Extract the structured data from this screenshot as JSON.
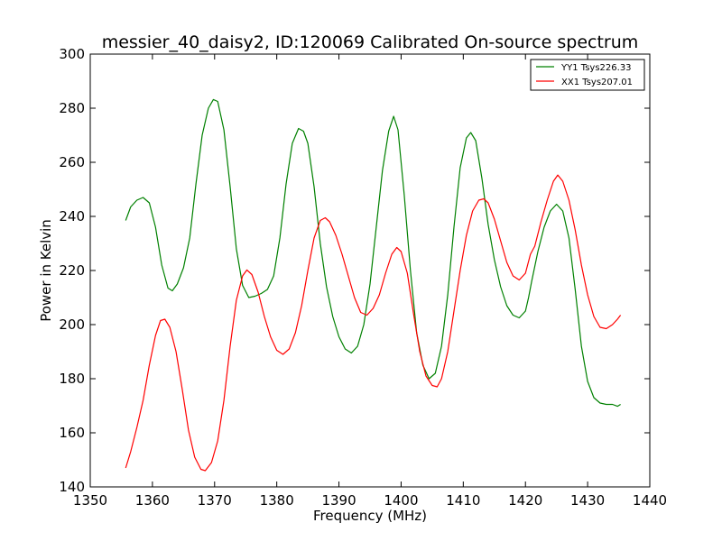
{
  "chart_data": {
    "type": "line",
    "title": "messier_40_daisy2, ID:120069 Calibrated On-source spectrum",
    "xlabel": "Frequency (MHz)",
    "ylabel": "Power in Kelvin",
    "xlim": [
      1350,
      1440
    ],
    "ylim": [
      140,
      300
    ],
    "xticks": [
      1350,
      1360,
      1370,
      1380,
      1390,
      1400,
      1410,
      1420,
      1430,
      1440
    ],
    "yticks": [
      140,
      160,
      180,
      200,
      220,
      240,
      260,
      280,
      300
    ],
    "grid": false,
    "legend_position": "top-right",
    "series": [
      {
        "name": "YY1 Tsys226.33",
        "color": "#008000",
        "points": [
          [
            1355.7,
            238.5
          ],
          [
            1356.5,
            243.5
          ],
          [
            1357.5,
            246.0
          ],
          [
            1358.5,
            247.0
          ],
          [
            1359.5,
            245.0
          ],
          [
            1360.5,
            236.0
          ],
          [
            1361.5,
            222.0
          ],
          [
            1362.5,
            213.5
          ],
          [
            1363.2,
            212.5
          ],
          [
            1364.0,
            215.0
          ],
          [
            1365.0,
            221.0
          ],
          [
            1366.0,
            232.0
          ],
          [
            1367.0,
            252.0
          ],
          [
            1368.0,
            270.0
          ],
          [
            1369.0,
            280.0
          ],
          [
            1369.8,
            283.2
          ],
          [
            1370.5,
            282.5
          ],
          [
            1371.5,
            272.0
          ],
          [
            1372.5,
            251.0
          ],
          [
            1373.5,
            228.0
          ],
          [
            1374.5,
            214.5
          ],
          [
            1375.5,
            210.0
          ],
          [
            1376.5,
            210.5
          ],
          [
            1377.5,
            211.5
          ],
          [
            1378.5,
            213.0
          ],
          [
            1379.5,
            218.0
          ],
          [
            1380.5,
            232.0
          ],
          [
            1381.5,
            252.0
          ],
          [
            1382.5,
            267.0
          ],
          [
            1383.5,
            272.5
          ],
          [
            1384.3,
            271.5
          ],
          [
            1385.0,
            267.0
          ],
          [
            1386.0,
            251.0
          ],
          [
            1387.0,
            230.0
          ],
          [
            1388.0,
            214.0
          ],
          [
            1389.0,
            203.0
          ],
          [
            1390.0,
            195.5
          ],
          [
            1391.0,
            191.0
          ],
          [
            1392.0,
            189.5
          ],
          [
            1393.0,
            192.0
          ],
          [
            1394.0,
            200.0
          ],
          [
            1395.0,
            215.0
          ],
          [
            1396.0,
            236.0
          ],
          [
            1397.0,
            257.0
          ],
          [
            1398.0,
            271.5
          ],
          [
            1398.8,
            277.0
          ],
          [
            1399.5,
            272.0
          ],
          [
            1400.5,
            248.0
          ],
          [
            1401.5,
            220.0
          ],
          [
            1402.5,
            197.0
          ],
          [
            1403.5,
            185.0
          ],
          [
            1404.5,
            180.0
          ],
          [
            1405.5,
            182.0
          ],
          [
            1406.5,
            192.0
          ],
          [
            1407.5,
            211.0
          ],
          [
            1408.5,
            236.0
          ],
          [
            1409.5,
            258.0
          ],
          [
            1410.5,
            269.0
          ],
          [
            1411.2,
            271.0
          ],
          [
            1412.0,
            268.0
          ],
          [
            1413.0,
            254.0
          ],
          [
            1414.0,
            237.0
          ],
          [
            1415.0,
            224.0
          ],
          [
            1416.0,
            214.0
          ],
          [
            1417.0,
            207.0
          ],
          [
            1418.0,
            203.5
          ],
          [
            1419.0,
            202.5
          ],
          [
            1420.0,
            205.0
          ],
          [
            1420.5,
            210.0
          ],
          [
            1421.0,
            216.0
          ],
          [
            1422.0,
            227.0
          ],
          [
            1423.0,
            236.0
          ],
          [
            1424.0,
            242.0
          ],
          [
            1425.0,
            244.5
          ],
          [
            1426.0,
            242.0
          ],
          [
            1427.0,
            232.0
          ],
          [
            1428.0,
            213.0
          ],
          [
            1429.0,
            192.0
          ],
          [
            1430.0,
            179.0
          ],
          [
            1431.0,
            173.0
          ],
          [
            1432.0,
            171.0
          ],
          [
            1433.0,
            170.5
          ],
          [
            1434.0,
            170.5
          ],
          [
            1434.8,
            169.8
          ],
          [
            1435.3,
            170.5
          ]
        ]
      },
      {
        "name": "XX1 Tsys207.01",
        "color": "#ff0000",
        "points": [
          [
            1355.7,
            147.0
          ],
          [
            1356.5,
            153.0
          ],
          [
            1357.5,
            162.0
          ],
          [
            1358.5,
            172.0
          ],
          [
            1359.5,
            185.0
          ],
          [
            1360.5,
            196.0
          ],
          [
            1361.3,
            201.5
          ],
          [
            1362.0,
            202.0
          ],
          [
            1362.8,
            199.0
          ],
          [
            1363.8,
            190.0
          ],
          [
            1364.8,
            176.0
          ],
          [
            1365.8,
            161.0
          ],
          [
            1366.8,
            151.0
          ],
          [
            1367.8,
            146.5
          ],
          [
            1368.5,
            146.0
          ],
          [
            1369.5,
            149.0
          ],
          [
            1370.5,
            157.0
          ],
          [
            1371.5,
            172.0
          ],
          [
            1372.5,
            192.0
          ],
          [
            1373.5,
            209.0
          ],
          [
            1374.5,
            218.0
          ],
          [
            1375.2,
            220.2
          ],
          [
            1376.0,
            218.5
          ],
          [
            1377.0,
            212.0
          ],
          [
            1378.0,
            203.0
          ],
          [
            1379.0,
            195.5
          ],
          [
            1380.0,
            190.5
          ],
          [
            1381.0,
            189.0
          ],
          [
            1382.0,
            191.0
          ],
          [
            1383.0,
            197.0
          ],
          [
            1384.0,
            207.0
          ],
          [
            1385.0,
            220.0
          ],
          [
            1386.0,
            232.0
          ],
          [
            1387.0,
            238.5
          ],
          [
            1387.8,
            239.5
          ],
          [
            1388.5,
            238.0
          ],
          [
            1389.5,
            233.0
          ],
          [
            1390.5,
            226.0
          ],
          [
            1391.5,
            218.0
          ],
          [
            1392.5,
            210.0
          ],
          [
            1393.5,
            204.5
          ],
          [
            1394.5,
            203.5
          ],
          [
            1395.5,
            206.0
          ],
          [
            1396.5,
            211.0
          ],
          [
            1397.5,
            219.0
          ],
          [
            1398.5,
            226.0
          ],
          [
            1399.3,
            228.5
          ],
          [
            1400.0,
            227.0
          ],
          [
            1401.0,
            219.0
          ],
          [
            1402.0,
            204.0
          ],
          [
            1403.0,
            190.0
          ],
          [
            1404.0,
            181.0
          ],
          [
            1405.0,
            177.5
          ],
          [
            1405.8,
            177.0
          ],
          [
            1406.5,
            180.0
          ],
          [
            1407.5,
            190.0
          ],
          [
            1408.5,
            205.0
          ],
          [
            1409.5,
            220.0
          ],
          [
            1410.5,
            233.0
          ],
          [
            1411.5,
            242.0
          ],
          [
            1412.5,
            246.0
          ],
          [
            1413.3,
            246.5
          ],
          [
            1414.0,
            245.0
          ],
          [
            1415.0,
            239.0
          ],
          [
            1416.0,
            231.0
          ],
          [
            1417.0,
            223.0
          ],
          [
            1418.0,
            218.0
          ],
          [
            1419.0,
            216.5
          ],
          [
            1420.0,
            219.0
          ],
          [
            1420.8,
            226.0
          ],
          [
            1421.5,
            229.0
          ],
          [
            1422.5,
            238.0
          ],
          [
            1423.5,
            246.0
          ],
          [
            1424.5,
            253.0
          ],
          [
            1425.2,
            255.3
          ],
          [
            1426.0,
            253.0
          ],
          [
            1427.0,
            246.0
          ],
          [
            1428.0,
            235.0
          ],
          [
            1429.0,
            222.0
          ],
          [
            1430.0,
            211.0
          ],
          [
            1431.0,
            203.0
          ],
          [
            1432.0,
            199.0
          ],
          [
            1433.0,
            198.5
          ],
          [
            1434.0,
            200.0
          ],
          [
            1434.8,
            202.0
          ],
          [
            1435.3,
            203.5
          ]
        ]
      }
    ]
  }
}
